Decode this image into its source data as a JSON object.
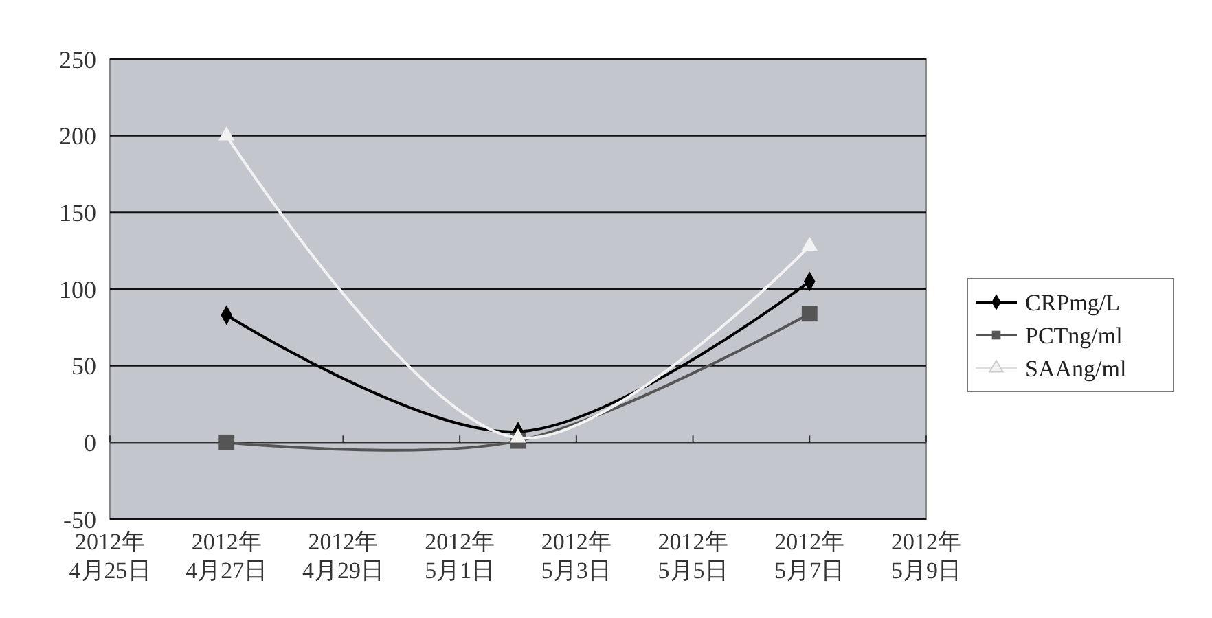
{
  "chart_data": {
    "type": "line",
    "x": [
      "2012-04-27",
      "2012-05-02",
      "2012-05-07"
    ],
    "series": [
      {
        "name": "CRPmg/L",
        "color": "#000000",
        "marker": "diamond",
        "values": [
          83,
          7,
          105
        ]
      },
      {
        "name": "PCTng/ml",
        "color": "#555555",
        "marker": "square",
        "values": [
          0,
          1,
          84
        ]
      },
      {
        "name": "SAAng/ml",
        "color": "#f2f2f2",
        "marker": "triangle",
        "values": [
          200,
          3,
          128
        ]
      }
    ],
    "ylim": [
      -50,
      250
    ],
    "yticks": [
      -50,
      0,
      50,
      100,
      150,
      200,
      250
    ],
    "xlim": [
      "2012-04-25",
      "2012-05-09"
    ],
    "xticks": [
      {
        "value": "2012-04-25",
        "label": "2012年 4月25日"
      },
      {
        "value": "2012-04-27",
        "label": "2012年 4月27日"
      },
      {
        "value": "2012-04-29",
        "label": "2012年 4月29日"
      },
      {
        "value": "2012-05-01",
        "label": "2012年 5月1日"
      },
      {
        "value": "2012-05-03",
        "label": "2012年 5月3日"
      },
      {
        "value": "2012-05-05",
        "label": "2012年 5月5日"
      },
      {
        "value": "2012-05-07",
        "label": "2012年 5月7日"
      },
      {
        "value": "2012-05-09",
        "label": "2012年 5月9日"
      }
    ],
    "grid": "y",
    "legend": "right",
    "line_style": "solid"
  }
}
